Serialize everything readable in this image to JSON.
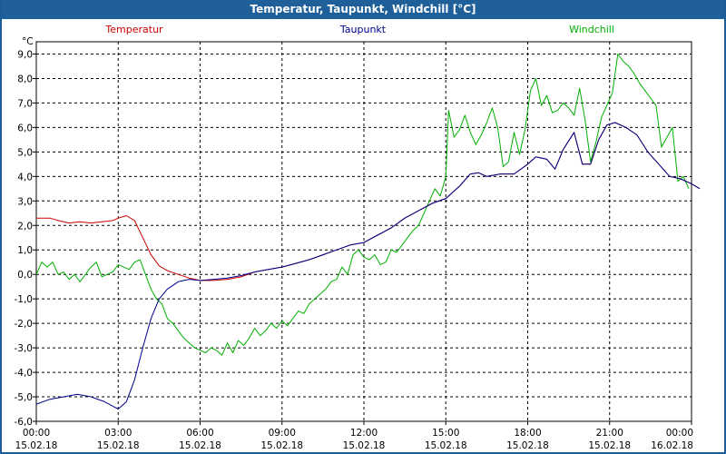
{
  "window": {
    "title": "Temperatur, Taupunkt, Windchill [°C]"
  },
  "chart_data": {
    "type": "line",
    "title": "Temperatur, Taupunkt, Windchill [°C]",
    "yunit": "°C",
    "ylim": [
      -6.0,
      9.5
    ],
    "xlim": [
      0,
      24
    ],
    "grid": true,
    "legend_placement": "top",
    "y_ticks": [
      "9,0",
      "8,0",
      "7,0",
      "6,0",
      "5,0",
      "4,0",
      "3,0",
      "2,0",
      "1,0",
      "0,0",
      "-1,0",
      "-2,0",
      "-3,0",
      "-4,0",
      "-5,0",
      "-6,0"
    ],
    "x_ticks": [
      {
        "time": "00:00",
        "date": "15.02.18"
      },
      {
        "time": "03:00",
        "date": "15.02.18"
      },
      {
        "time": "06:00",
        "date": "15.02.18"
      },
      {
        "time": "09:00",
        "date": "15.02.18"
      },
      {
        "time": "12:00",
        "date": "15.02.18"
      },
      {
        "time": "15:00",
        "date": "15.02.18"
      },
      {
        "time": "18:00",
        "date": "15.02.18"
      },
      {
        "time": "21:00",
        "date": "15.02.18"
      },
      {
        "time": "00:00",
        "date": "16.02.18"
      }
    ],
    "series": [
      {
        "name": "Temperatur",
        "color": "#cc0000",
        "points": [
          [
            0,
            2.3
          ],
          [
            0.5,
            2.3
          ],
          [
            0.8,
            2.2
          ],
          [
            1.2,
            2.1
          ],
          [
            1.6,
            2.15
          ],
          [
            2.0,
            2.1
          ],
          [
            2.4,
            2.15
          ],
          [
            2.8,
            2.2
          ],
          [
            3.0,
            2.3
          ],
          [
            3.3,
            2.4
          ],
          [
            3.6,
            2.2
          ],
          [
            3.9,
            1.5
          ],
          [
            4.2,
            0.8
          ],
          [
            4.5,
            0.35
          ],
          [
            4.8,
            0.15
          ],
          [
            5.2,
            0.0
          ],
          [
            5.6,
            -0.15
          ],
          [
            6.0,
            -0.25
          ],
          [
            6.5,
            -0.25
          ],
          [
            7.0,
            -0.2
          ],
          [
            7.5,
            -0.1
          ],
          [
            8.0,
            0.1
          ],
          [
            8.5,
            0.2
          ],
          [
            9.0,
            0.3
          ],
          [
            9.5,
            0.45
          ],
          [
            10.0,
            0.6
          ],
          [
            10.5,
            0.8
          ],
          [
            11.0,
            1.0
          ],
          [
            11.5,
            1.2
          ],
          [
            12.0,
            1.3
          ],
          [
            12.5,
            1.6
          ],
          [
            13.0,
            1.9
          ],
          [
            13.5,
            2.3
          ],
          [
            14.0,
            2.6
          ],
          [
            14.5,
            2.9
          ],
          [
            15.0,
            3.1
          ],
          [
            15.5,
            3.6
          ],
          [
            15.9,
            4.1
          ],
          [
            16.2,
            4.15
          ],
          [
            16.5,
            4.0
          ],
          [
            17.0,
            4.1
          ],
          [
            17.5,
            4.1
          ],
          [
            18.0,
            4.5
          ],
          [
            18.3,
            4.8
          ],
          [
            18.7,
            4.7
          ],
          [
            19.0,
            4.3
          ],
          [
            19.3,
            5.1
          ],
          [
            19.7,
            5.8
          ],
          [
            20.0,
            4.5
          ],
          [
            20.3,
            4.5
          ],
          [
            20.6,
            5.5
          ],
          [
            20.9,
            6.1
          ],
          [
            21.2,
            6.2
          ],
          [
            21.6,
            6.0
          ],
          [
            22.0,
            5.7
          ],
          [
            22.4,
            5.0
          ],
          [
            22.8,
            4.5
          ],
          [
            23.2,
            4.0
          ],
          [
            23.6,
            3.9
          ],
          [
            24.0,
            3.7
          ],
          [
            24.3,
            3.5
          ]
        ]
      },
      {
        "name": "Taupunkt",
        "color": "#00008b",
        "points": [
          [
            0,
            -5.3
          ],
          [
            0.5,
            -5.1
          ],
          [
            1.0,
            -5.0
          ],
          [
            1.5,
            -4.9
          ],
          [
            2.0,
            -5.0
          ],
          [
            2.5,
            -5.2
          ],
          [
            3.0,
            -5.5
          ],
          [
            3.3,
            -5.2
          ],
          [
            3.6,
            -4.3
          ],
          [
            3.9,
            -3.0
          ],
          [
            4.2,
            -1.8
          ],
          [
            4.5,
            -1.0
          ],
          [
            4.8,
            -0.6
          ],
          [
            5.2,
            -0.3
          ],
          [
            5.6,
            -0.2
          ],
          [
            6.0,
            -0.25
          ],
          [
            6.5,
            -0.2
          ],
          [
            7.0,
            -0.15
          ],
          [
            7.5,
            -0.05
          ],
          [
            8.0,
            0.1
          ],
          [
            8.5,
            0.2
          ],
          [
            9.0,
            0.3
          ],
          [
            9.5,
            0.45
          ],
          [
            10.0,
            0.6
          ],
          [
            10.5,
            0.8
          ],
          [
            11.0,
            1.0
          ],
          [
            11.5,
            1.2
          ],
          [
            12.0,
            1.3
          ],
          [
            12.5,
            1.6
          ],
          [
            13.0,
            1.9
          ],
          [
            13.5,
            2.3
          ],
          [
            14.0,
            2.6
          ],
          [
            14.5,
            2.9
          ],
          [
            15.0,
            3.1
          ],
          [
            15.5,
            3.6
          ],
          [
            15.9,
            4.1
          ],
          [
            16.2,
            4.15
          ],
          [
            16.5,
            4.0
          ],
          [
            17.0,
            4.1
          ],
          [
            17.5,
            4.1
          ],
          [
            18.0,
            4.5
          ],
          [
            18.3,
            4.8
          ],
          [
            18.7,
            4.7
          ],
          [
            19.0,
            4.3
          ],
          [
            19.3,
            5.1
          ],
          [
            19.7,
            5.8
          ],
          [
            20.0,
            4.5
          ],
          [
            20.3,
            4.5
          ],
          [
            20.6,
            5.5
          ],
          [
            20.9,
            6.1
          ],
          [
            21.2,
            6.2
          ],
          [
            21.6,
            6.0
          ],
          [
            22.0,
            5.7
          ],
          [
            22.4,
            5.0
          ],
          [
            22.8,
            4.5
          ],
          [
            23.2,
            4.0
          ],
          [
            23.6,
            3.9
          ],
          [
            24.0,
            3.7
          ],
          [
            24.3,
            3.5
          ]
        ]
      },
      {
        "name": "Windchill",
        "color": "#00b000",
        "points": [
          [
            0,
            0.0
          ],
          [
            0.2,
            0.5
          ],
          [
            0.4,
            0.3
          ],
          [
            0.6,
            0.5
          ],
          [
            0.8,
            0.0
          ],
          [
            1.0,
            0.1
          ],
          [
            1.2,
            -0.2
          ],
          [
            1.4,
            0.0
          ],
          [
            1.6,
            -0.3
          ],
          [
            1.8,
            0.0
          ],
          [
            2.0,
            0.3
          ],
          [
            2.2,
            0.5
          ],
          [
            2.4,
            -0.1
          ],
          [
            2.6,
            0.0
          ],
          [
            2.8,
            0.1
          ],
          [
            3.0,
            0.4
          ],
          [
            3.2,
            0.3
          ],
          [
            3.4,
            0.2
          ],
          [
            3.6,
            0.5
          ],
          [
            3.8,
            0.6
          ],
          [
            4.0,
            0.0
          ],
          [
            4.2,
            -0.6
          ],
          [
            4.4,
            -1.0
          ],
          [
            4.6,
            -1.2
          ],
          [
            4.8,
            -1.8
          ],
          [
            5.0,
            -2.0
          ],
          [
            5.2,
            -2.3
          ],
          [
            5.4,
            -2.6
          ],
          [
            5.6,
            -2.8
          ],
          [
            5.8,
            -3.0
          ],
          [
            6.0,
            -3.1
          ],
          [
            6.2,
            -3.2
          ],
          [
            6.4,
            -3.0
          ],
          [
            6.6,
            -3.1
          ],
          [
            6.8,
            -3.3
          ],
          [
            7.0,
            -2.8
          ],
          [
            7.2,
            -3.2
          ],
          [
            7.4,
            -2.7
          ],
          [
            7.6,
            -2.9
          ],
          [
            7.8,
            -2.6
          ],
          [
            8.0,
            -2.2
          ],
          [
            8.2,
            -2.5
          ],
          [
            8.4,
            -2.3
          ],
          [
            8.6,
            -2.0
          ],
          [
            8.8,
            -2.2
          ],
          [
            9.0,
            -1.9
          ],
          [
            9.2,
            -2.1
          ],
          [
            9.4,
            -1.8
          ],
          [
            9.6,
            -1.5
          ],
          [
            9.8,
            -1.6
          ],
          [
            10.0,
            -1.2
          ],
          [
            10.2,
            -1.0
          ],
          [
            10.4,
            -0.8
          ],
          [
            10.6,
            -0.6
          ],
          [
            10.8,
            -0.3
          ],
          [
            11.0,
            -0.2
          ],
          [
            11.2,
            0.3
          ],
          [
            11.4,
            0.0
          ],
          [
            11.6,
            0.8
          ],
          [
            11.8,
            1.0
          ],
          [
            12.0,
            0.7
          ],
          [
            12.2,
            0.6
          ],
          [
            12.4,
            0.8
          ],
          [
            12.6,
            0.4
          ],
          [
            12.8,
            0.5
          ],
          [
            13.0,
            1.0
          ],
          [
            13.2,
            0.9
          ],
          [
            13.4,
            1.2
          ],
          [
            13.6,
            1.5
          ],
          [
            13.8,
            1.8
          ],
          [
            14.0,
            2.0
          ],
          [
            14.2,
            2.5
          ],
          [
            14.4,
            3.0
          ],
          [
            14.6,
            3.5
          ],
          [
            14.8,
            3.2
          ],
          [
            15.0,
            4.0
          ],
          [
            15.1,
            6.7
          ],
          [
            15.3,
            5.6
          ],
          [
            15.5,
            5.9
          ],
          [
            15.7,
            6.5
          ],
          [
            15.9,
            5.8
          ],
          [
            16.1,
            5.3
          ],
          [
            16.3,
            5.7
          ],
          [
            16.5,
            6.2
          ],
          [
            16.7,
            6.8
          ],
          [
            16.9,
            6.0
          ],
          [
            17.1,
            4.4
          ],
          [
            17.3,
            4.6
          ],
          [
            17.5,
            5.8
          ],
          [
            17.7,
            4.9
          ],
          [
            17.9,
            5.9
          ],
          [
            18.1,
            7.5
          ],
          [
            18.3,
            8.0
          ],
          [
            18.5,
            6.9
          ],
          [
            18.7,
            7.3
          ],
          [
            18.9,
            6.6
          ],
          [
            19.1,
            6.7
          ],
          [
            19.3,
            7.0
          ],
          [
            19.5,
            6.8
          ],
          [
            19.7,
            6.5
          ],
          [
            19.9,
            7.6
          ],
          [
            20.1,
            6.3
          ],
          [
            20.3,
            4.6
          ],
          [
            20.5,
            5.4
          ],
          [
            20.7,
            6.4
          ],
          [
            20.9,
            6.9
          ],
          [
            21.1,
            7.4
          ],
          [
            21.3,
            9.0
          ],
          [
            21.5,
            8.7
          ],
          [
            21.7,
            8.5
          ],
          [
            21.9,
            8.2
          ],
          [
            22.1,
            7.8
          ],
          [
            22.3,
            7.5
          ],
          [
            22.5,
            7.2
          ],
          [
            22.7,
            6.9
          ],
          [
            22.9,
            5.2
          ],
          [
            23.1,
            5.6
          ],
          [
            23.3,
            6.0
          ],
          [
            23.5,
            3.8
          ],
          [
            23.7,
            4.0
          ],
          [
            23.9,
            3.5
          ]
        ]
      }
    ]
  }
}
